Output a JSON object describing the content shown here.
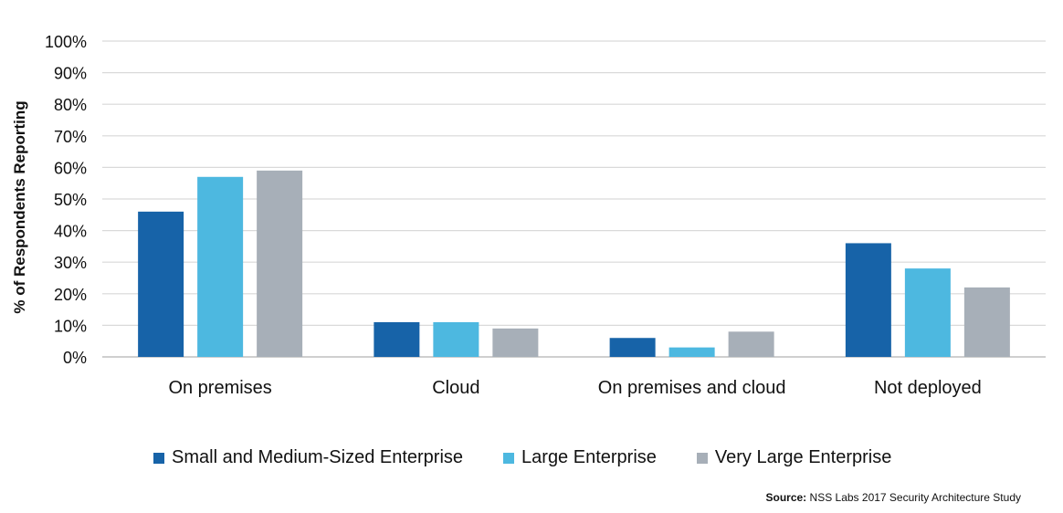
{
  "chart_data": {
    "type": "bar",
    "ylabel": "% of Respondents Reporting",
    "categories": [
      "On premises",
      "Cloud",
      "On premises and cloud",
      "Not deployed"
    ],
    "series": [
      {
        "name": "Small and Medium-Sized Enterprise",
        "color": "#1763a8",
        "values": [
          46,
          11,
          6,
          36
        ]
      },
      {
        "name": "Large Enterprise",
        "color": "#4db8e0",
        "values": [
          57,
          11,
          3,
          28
        ]
      },
      {
        "name": "Very Large Enterprise",
        "color": "#a7afb8",
        "values": [
          59,
          9,
          8,
          22
        ]
      }
    ],
    "ylim": [
      0,
      100
    ],
    "yticks": [
      "0%",
      "10%",
      "20%",
      "30%",
      "40%",
      "50%",
      "60%",
      "70%",
      "80%",
      "90%",
      "100%"
    ],
    "grid": true,
    "legend_position": "bottom"
  },
  "source": {
    "label": "Source:",
    "text": "NSS Labs 2017 Security Architecture Study"
  }
}
